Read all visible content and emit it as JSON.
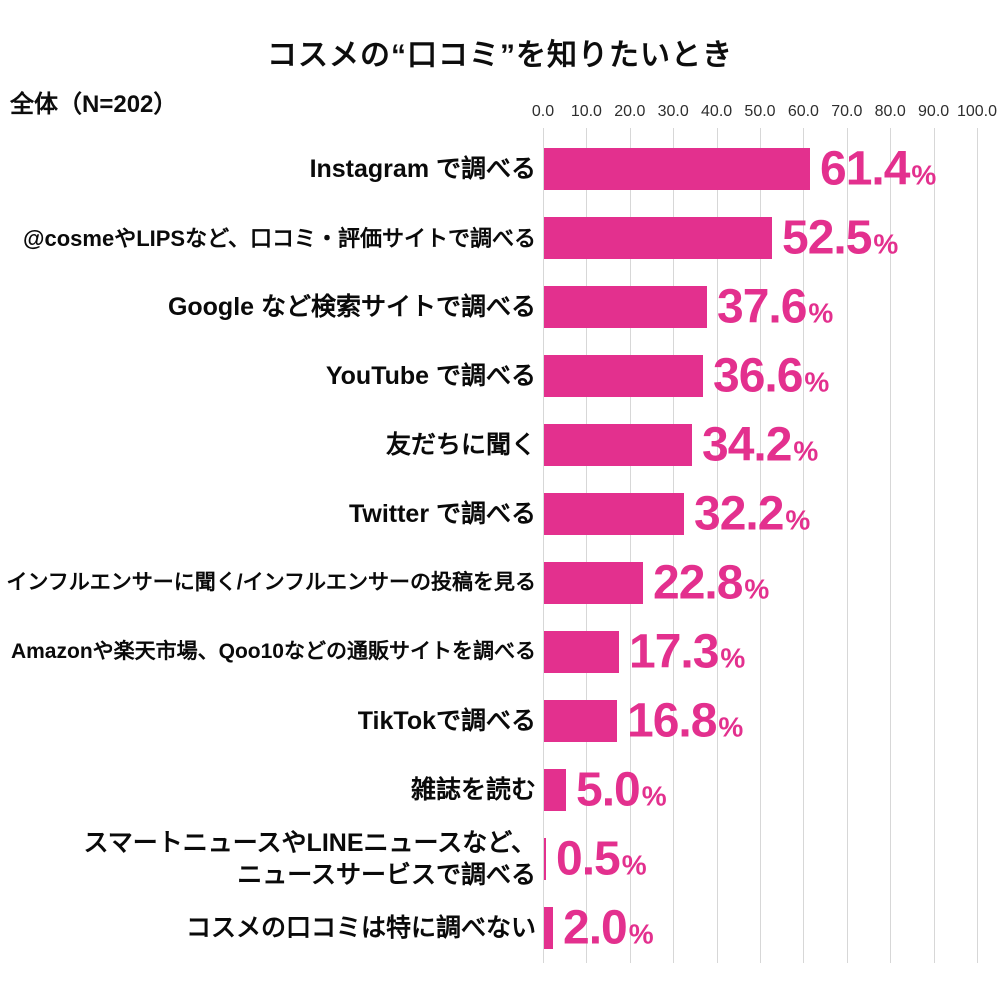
{
  "title": "コスメの“口コミ”を知りたいとき",
  "subtitle": "全体（N=202）",
  "colors": {
    "bar": "#e3308e",
    "value_text": "#e3308e",
    "grid": "#d7d7d7",
    "label_text": "#0a0a0a",
    "axis_text": "#2e2e2e",
    "background": "#ffffff"
  },
  "chart_data": {
    "type": "bar",
    "orientation": "horizontal",
    "title": "コスメの“口コミ”を知りたいとき",
    "subtitle": "全体（N=202）",
    "sample_size": "N=202",
    "xlim": [
      0,
      100
    ],
    "grid": true,
    "x_ticks": [
      "0.0",
      "10.0",
      "20.0",
      "30.0",
      "40.0",
      "50.0",
      "60.0",
      "70.0",
      "80.0",
      "90.0",
      "100.0"
    ],
    "categories": [
      "Instagram で調べる",
      "@cosmeやLIPSなど、口コミ・評価サイトで調べる",
      "Google など検索サイトで調べる",
      "YouTube で調べる",
      "友だちに聞く",
      "Twitter で調べる",
      "インフルエンサーに聞く/インフルエンサーの投稿を見る",
      "Amazonや楽天市場、Qoo10などの通販サイトを調べる",
      "TikTokで調べる",
      "雑誌を読む",
      "スマートニュースやLINEニュースなど、\nニュースサービスで調べる",
      "コスメの口コミは特に調べない"
    ],
    "values": [
      61.4,
      52.5,
      37.6,
      36.6,
      34.2,
      32.2,
      22.8,
      17.3,
      16.8,
      5.0,
      0.5,
      2.0
    ],
    "value_labels": [
      "61.4",
      "52.5",
      "37.6",
      "36.6",
      "34.2",
      "32.2",
      "22.8",
      "17.3",
      "16.8",
      "5.0",
      "0.5",
      "2.0"
    ],
    "value_suffix": "%"
  }
}
